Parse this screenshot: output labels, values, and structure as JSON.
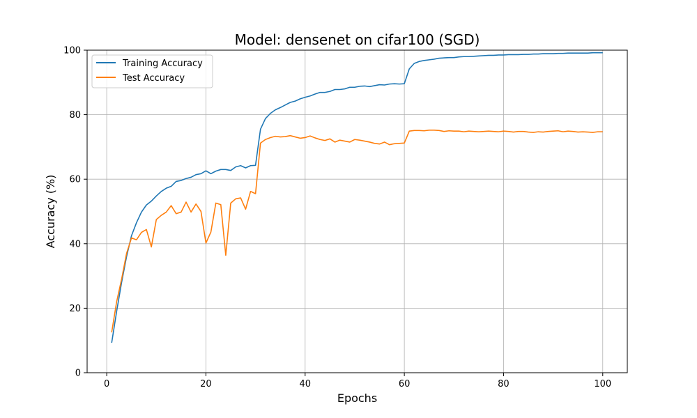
{
  "chart_data": {
    "type": "line",
    "title": "Model: densenet on cifar100 (SGD)",
    "xlabel": "Epochs",
    "ylabel": "Accuracy (%)",
    "xlim": [
      -3.95,
      104.95
    ],
    "ylim": [
      0,
      100
    ],
    "xticks": [
      0,
      20,
      40,
      60,
      80,
      100
    ],
    "yticks": [
      0,
      20,
      40,
      60,
      80,
      100
    ],
    "grid": true,
    "legend_position": "top-left",
    "x": [
      1,
      2,
      3,
      4,
      5,
      6,
      7,
      8,
      9,
      10,
      11,
      12,
      13,
      14,
      15,
      16,
      17,
      18,
      19,
      20,
      21,
      22,
      23,
      24,
      25,
      26,
      27,
      28,
      29,
      30,
      31,
      32,
      33,
      34,
      35,
      36,
      37,
      38,
      39,
      40,
      41,
      42,
      43,
      44,
      45,
      46,
      47,
      48,
      49,
      50,
      51,
      52,
      53,
      54,
      55,
      56,
      57,
      58,
      59,
      60,
      61,
      62,
      63,
      64,
      65,
      66,
      67,
      68,
      69,
      70,
      71,
      72,
      73,
      74,
      75,
      76,
      77,
      78,
      79,
      80,
      81,
      82,
      83,
      84,
      85,
      86,
      87,
      88,
      89,
      90,
      91,
      92,
      93,
      94,
      95,
      96,
      97,
      98,
      99,
      100
    ],
    "series": [
      {
        "name": "Training Accuracy",
        "color": "#1f77b4",
        "values": [
          9.3,
          19,
          28,
          36,
          42.5,
          46.5,
          49.8,
          52,
          53.2,
          54.8,
          56.2,
          57.2,
          57.8,
          59.3,
          59.6,
          60.2,
          60.6,
          61.4,
          61.7,
          62.6,
          61.7,
          62.5,
          63,
          63,
          62.7,
          63.8,
          64.2,
          63.5,
          64.2,
          64.3,
          75.5,
          78.8,
          80.4,
          81.5,
          82.2,
          83,
          83.8,
          84.2,
          84.9,
          85.4,
          85.8,
          86.4,
          86.9,
          86.9,
          87.2,
          87.8,
          87.8,
          88,
          88.5,
          88.5,
          88.8,
          88.9,
          88.7,
          89,
          89.3,
          89.2,
          89.5,
          89.6,
          89.5,
          89.6,
          94.2,
          95.9,
          96.5,
          96.8,
          97,
          97.2,
          97.5,
          97.6,
          97.7,
          97.7,
          97.9,
          98,
          98,
          98.1,
          98.2,
          98.3,
          98.4,
          98.4,
          98.5,
          98.5,
          98.6,
          98.6,
          98.6,
          98.7,
          98.7,
          98.8,
          98.8,
          98.9,
          98.9,
          98.9,
          99,
          99,
          99.1,
          99.1,
          99.1,
          99.1,
          99.1,
          99.2,
          99.2,
          99.2
        ]
      },
      {
        "name": "Test Accuracy",
        "color": "#ff7f0e",
        "values": [
          12.5,
          22,
          29,
          37,
          41.8,
          41.2,
          43.5,
          44.4,
          39,
          47.5,
          48.8,
          49.8,
          51.8,
          49.3,
          49.8,
          52.9,
          49.8,
          52.3,
          50,
          40.2,
          43.6,
          52.6,
          52.1,
          36.4,
          52.6,
          53.9,
          54.2,
          50.7,
          56.2,
          55.5,
          71.2,
          72.3,
          72.9,
          73.3,
          73.1,
          73.2,
          73.5,
          73.1,
          72.7,
          72.9,
          73.4,
          72.8,
          72.3,
          72,
          72.5,
          71.5,
          72.1,
          71.8,
          71.5,
          72.3,
          72.1,
          71.8,
          71.5,
          71.1,
          70.9,
          71.5,
          70.7,
          71,
          71.1,
          71.2,
          74.9,
          75.1,
          75.1,
          75,
          75.2,
          75.2,
          75.1,
          74.8,
          75,
          74.9,
          74.9,
          74.7,
          74.9,
          74.8,
          74.7,
          74.8,
          74.9,
          74.8,
          74.7,
          74.9,
          74.8,
          74.6,
          74.8,
          74.8,
          74.6,
          74.5,
          74.7,
          74.6,
          74.8,
          74.9,
          75,
          74.7,
          74.9,
          74.8,
          74.6,
          74.7,
          74.6,
          74.5,
          74.7,
          74.7
        ]
      }
    ]
  }
}
